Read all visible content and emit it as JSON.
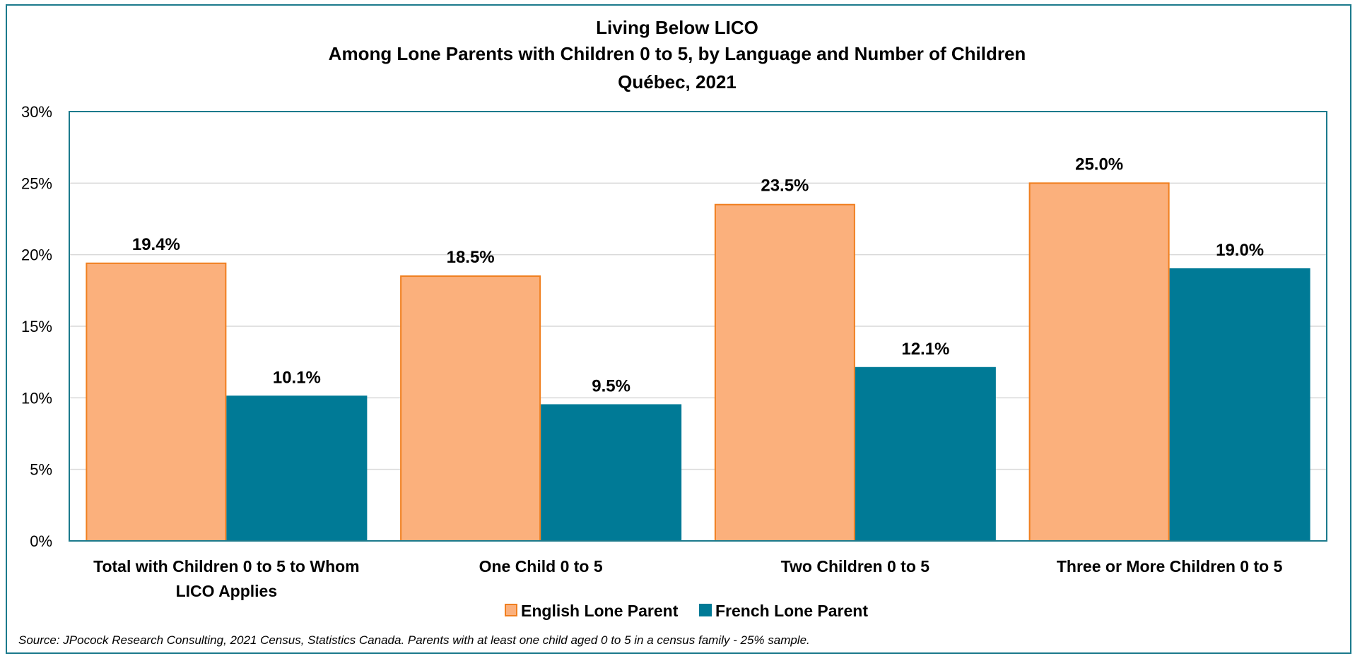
{
  "chart_data": {
    "type": "bar",
    "title": [
      "Living Below LICO",
      "Among Lone Parents with Children 0 to 5, by Language and Number of Children",
      "Québec, 2021"
    ],
    "categories": [
      [
        "Total with Children 0 to 5 to Whom",
        "LICO Applies"
      ],
      [
        "One Child 0 to 5"
      ],
      [
        "Two Children 0 to 5"
      ],
      [
        "Three or More Children 0 to 5"
      ]
    ],
    "series": [
      {
        "name": "English Lone Parent",
        "values": [
          19.4,
          18.5,
          23.5,
          25.0
        ],
        "labels": [
          "19.4%",
          "18.5%",
          "23.5%",
          "25.0%"
        ],
        "color": "#fbb07c",
        "stroke": "#f07f1f"
      },
      {
        "name": "French Lone Parent",
        "values": [
          10.1,
          9.5,
          12.1,
          19.0
        ],
        "labels": [
          "10.1%",
          "9.5%",
          "12.1%",
          "19.0%"
        ],
        "color": "#007a96",
        "stroke": "#007a96"
      }
    ],
    "ylim": [
      0,
      30
    ],
    "yticks": [
      {
        "value": 0,
        "label": "0%"
      },
      {
        "value": 5,
        "label": "5%"
      },
      {
        "value": 10,
        "label": "10%"
      },
      {
        "value": 15,
        "label": "15%"
      },
      {
        "value": 20,
        "label": "20%"
      },
      {
        "value": 25,
        "label": "25%"
      },
      {
        "value": 30,
        "label": "30%"
      }
    ],
    "grid": true,
    "legend_position": "bottom",
    "plot_border_color": "#1b7a8c",
    "gridline_color": "#d9d9d9",
    "source": "Source: JPocock Research Consulting, 2021 Census, Statistics Canada. Parents with at least one child aged 0 to 5 in a census family - 25% sample."
  }
}
